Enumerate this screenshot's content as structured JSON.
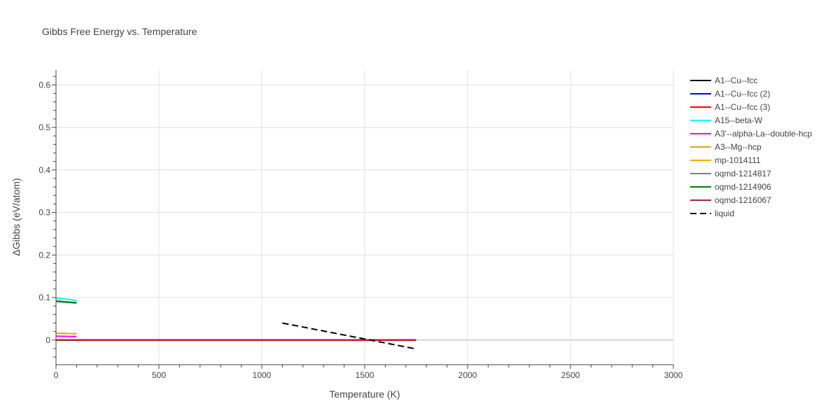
{
  "chart_data": {
    "type": "line",
    "title": "Gibbs Free Energy vs. Temperature",
    "xlabel": "Temperature (K)",
    "ylabel": "ΔGibbs (eV/atom)",
    "xlim": [
      0,
      3000
    ],
    "ylim": [
      -0.058,
      0.635
    ],
    "x_ticks": [
      0,
      500,
      1000,
      1500,
      2000,
      2500,
      3000
    ],
    "y_ticks": [
      0,
      0.1,
      0.2,
      0.3,
      0.4,
      0.5,
      0.6
    ],
    "x_tick_labels": [
      "0",
      "500",
      "1000",
      "1500",
      "2000",
      "2500",
      "3000"
    ],
    "y_tick_labels": [
      "0",
      "0.1",
      "0.2",
      "0.3",
      "0.4",
      "0.5",
      "0.6"
    ],
    "grid": true,
    "legend_position": "right",
    "series": [
      {
        "name": "A1--Cu--fcc",
        "color": "#000000",
        "dash": "solid",
        "x": [
          0,
          1750
        ],
        "y": [
          0,
          0
        ]
      },
      {
        "name": "A1--Cu--fcc (2)",
        "color": "#0000ff",
        "dash": "solid",
        "x": [
          0,
          1750
        ],
        "y": [
          0,
          0
        ]
      },
      {
        "name": "A1--Cu--fcc (3)",
        "color": "#ff0000",
        "dash": "solid",
        "x": [
          0,
          1750
        ],
        "y": [
          0,
          0
        ]
      },
      {
        "name": "A15--beta-W",
        "color": "#00ffff",
        "dash": "solid",
        "x": [
          0,
          100
        ],
        "y": [
          0.099,
          0.093
        ]
      },
      {
        "name": "A3'--alpha-La--double-hcp",
        "color": "#ff00ff",
        "dash": "solid",
        "x": [
          0,
          100
        ],
        "y": [
          0.009,
          0.008
        ]
      },
      {
        "name": "A3--Mg--hcp",
        "color": "#daa520",
        "dash": "solid",
        "x": [
          0,
          100
        ],
        "y": [
          0.016,
          0.015
        ]
      },
      {
        "name": "mp-1014111",
        "color": "#ffa500",
        "dash": "solid",
        "x": [
          0,
          100
        ],
        "y": [
          0.016,
          0.015
        ]
      },
      {
        "name": "oqmd-1214817",
        "color": "#808080",
        "dash": "solid",
        "x": [
          0,
          100
        ],
        "y": [
          0.092,
          0.088
        ]
      },
      {
        "name": "oqmd-1214906",
        "color": "#008000",
        "dash": "solid",
        "x": [
          0,
          100
        ],
        "y": [
          0.091,
          0.087
        ]
      },
      {
        "name": "oqmd-1216067",
        "color": "#a52a2a",
        "dash": "solid",
        "x": [
          0,
          100
        ],
        "y": [
          0.0,
          0.0
        ]
      },
      {
        "name": "liquid",
        "color": "#000000",
        "dash": "dash",
        "x": [
          1100,
          1750
        ],
        "y": [
          0.04,
          -0.021
        ]
      }
    ]
  }
}
